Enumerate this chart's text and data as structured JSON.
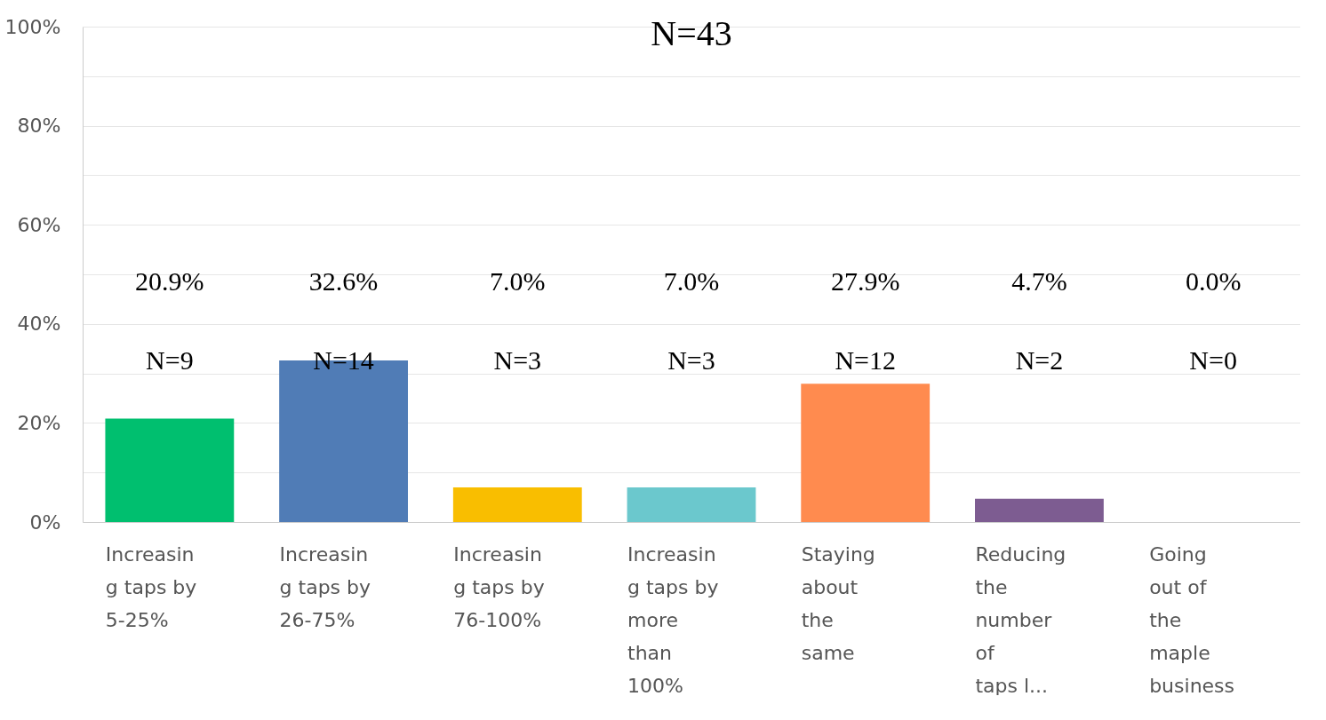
{
  "chart_data": {
    "type": "bar",
    "title": "N=43",
    "categories": [
      "Increasin\ng taps by\n5-25%",
      "Increasin\ng taps by\n26-75%",
      "Increasin\ng taps by\n76-100%",
      "Increasin\ng taps by\nmore\nthan\n100%",
      "Staying\nabout\nthe\nsame",
      "Reducing\nthe\nnumber\nof\ntaps l...",
      "Going\nout of\nthe\nmaple\nbusiness"
    ],
    "values": [
      20.9,
      32.6,
      7.0,
      7.0,
      27.9,
      4.7,
      0.0
    ],
    "colors": [
      "#00bf6f",
      "#507cb6",
      "#f9be00",
      "#6bc8cd",
      "#ff8b4f",
      "#7d5c91",
      "#7d5c91"
    ],
    "annotations": [
      "20.9%",
      "32.6%",
      "7.0%",
      "7.0%",
      "27.9%",
      "4.7%",
      "0.0%",
      "N=9",
      "N=14",
      "N=3",
      "N=3",
      "N=12",
      "N=2",
      "N=0"
    ],
    "ylim": [
      0,
      100
    ],
    "yticks": [
      {
        "value": 0,
        "label": "0%"
      },
      {
        "value": 10,
        "label": null
      },
      {
        "value": 20,
        "label": "20%"
      },
      {
        "value": 30,
        "label": null
      },
      {
        "value": 40,
        "label": "40%"
      },
      {
        "value": 50,
        "label": null
      },
      {
        "value": 60,
        "label": "60%"
      },
      {
        "value": 70,
        "label": null
      },
      {
        "value": 80,
        "label": "80%"
      },
      {
        "value": 90,
        "label": null
      },
      {
        "value": 100,
        "label": "100%"
      }
    ],
    "grid": "y"
  }
}
